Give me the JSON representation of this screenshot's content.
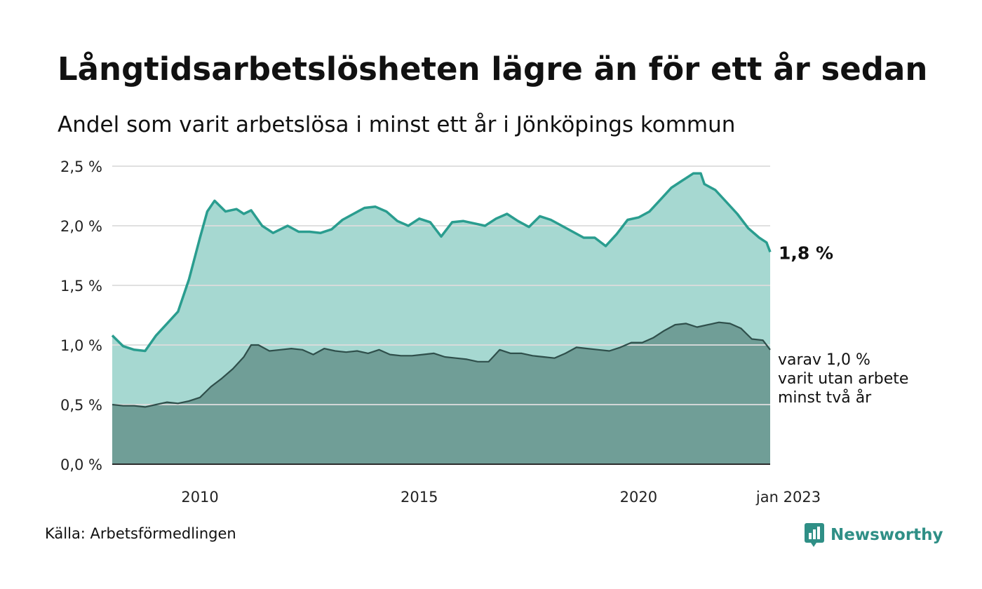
{
  "title": "Långtidsarbetslösheten lägre än för ett år sedan",
  "subtitle": "Andel som varit arbetslösa i minst ett år i Jönköpings kommun",
  "source": "Källa: Arbetsförmedlingen",
  "brand": "Newsworthy",
  "colors": {
    "total_line": "#2a9d8f",
    "total_fill": "#a6d8d1",
    "long_line": "#2f4f4b",
    "long_fill": "#709e97",
    "grid": "#dddddd"
  },
  "chart_data": {
    "type": "area",
    "title": "Andel som varit arbetslösa i minst ett år i Jönköpings kommun",
    "xlabel": "",
    "ylabel": "",
    "x_start": "2008-01",
    "x_end": "2023-01",
    "xlim": [
      "2008-01",
      "2023-01"
    ],
    "ylim": [
      0,
      2.5
    ],
    "yticks": [
      {
        "value": 0,
        "label": "0,0 %"
      },
      {
        "value": 0.5,
        "label": "0,5 %"
      },
      {
        "value": 1.0,
        "label": "1,0 %"
      },
      {
        "value": 1.5,
        "label": "1,5 %"
      },
      {
        "value": 2.0,
        "label": "2,0 %"
      },
      {
        "value": 2.5,
        "label": "2,5 %"
      }
    ],
    "xticks": [
      {
        "date": "2010-01",
        "label": "2010"
      },
      {
        "date": "2015-01",
        "label": "2015"
      },
      {
        "date": "2020-01",
        "label": "2020"
      },
      {
        "date": "2023-01",
        "label": "jan 2023"
      }
    ],
    "grid": true,
    "series": [
      {
        "key": "total",
        "end_label": "1,8 %",
        "points": [
          [
            "2008-01",
            1.08
          ],
          [
            "2008-04",
            0.99
          ],
          [
            "2008-07",
            0.96
          ],
          [
            "2008-10",
            0.95
          ],
          [
            "2009-01",
            1.08
          ],
          [
            "2009-04",
            1.18
          ],
          [
            "2009-07",
            1.28
          ],
          [
            "2009-10",
            1.55
          ],
          [
            "2010-01",
            1.9
          ],
          [
            "2010-03",
            2.12
          ],
          [
            "2010-05",
            2.21
          ],
          [
            "2010-08",
            2.12
          ],
          [
            "2010-11",
            2.14
          ],
          [
            "2011-01",
            2.1
          ],
          [
            "2011-03",
            2.13
          ],
          [
            "2011-06",
            2.0
          ],
          [
            "2011-09",
            1.94
          ],
          [
            "2012-01",
            2.0
          ],
          [
            "2012-04",
            1.95
          ],
          [
            "2012-07",
            1.95
          ],
          [
            "2012-10",
            1.94
          ],
          [
            "2013-01",
            1.97
          ],
          [
            "2013-04",
            2.05
          ],
          [
            "2013-07",
            2.1
          ],
          [
            "2013-10",
            2.15
          ],
          [
            "2014-01",
            2.16
          ],
          [
            "2014-04",
            2.12
          ],
          [
            "2014-07",
            2.04
          ],
          [
            "2014-10",
            2.0
          ],
          [
            "2015-01",
            2.06
          ],
          [
            "2015-04",
            2.03
          ],
          [
            "2015-07",
            1.91
          ],
          [
            "2015-10",
            2.03
          ],
          [
            "2016-01",
            2.04
          ],
          [
            "2016-04",
            2.02
          ],
          [
            "2016-07",
            2.0
          ],
          [
            "2016-10",
            2.06
          ],
          [
            "2017-01",
            2.1
          ],
          [
            "2017-04",
            2.04
          ],
          [
            "2017-07",
            1.99
          ],
          [
            "2017-10",
            2.08
          ],
          [
            "2018-01",
            2.05
          ],
          [
            "2018-04",
            2.0
          ],
          [
            "2018-07",
            1.95
          ],
          [
            "2018-10",
            1.9
          ],
          [
            "2019-01",
            1.9
          ],
          [
            "2019-04",
            1.83
          ],
          [
            "2019-07",
            1.93
          ],
          [
            "2019-10",
            2.05
          ],
          [
            "2020-01",
            2.07
          ],
          [
            "2020-04",
            2.12
          ],
          [
            "2020-07",
            2.22
          ],
          [
            "2020-10",
            2.32
          ],
          [
            "2021-01",
            2.38
          ],
          [
            "2021-04",
            2.44
          ],
          [
            "2021-06",
            2.44
          ],
          [
            "2021-07",
            2.35
          ],
          [
            "2021-10",
            2.3
          ],
          [
            "2022-01",
            2.2
          ],
          [
            "2022-04",
            2.1
          ],
          [
            "2022-07",
            1.98
          ],
          [
            "2022-10",
            1.9
          ],
          [
            "2022-12",
            1.86
          ],
          [
            "2023-01",
            1.78
          ]
        ]
      },
      {
        "key": "long",
        "end_label": [
          "varav 1,0 %",
          "varit utan arbete",
          "minst två år"
        ],
        "points": [
          [
            "2008-01",
            0.5
          ],
          [
            "2008-04",
            0.49
          ],
          [
            "2008-07",
            0.49
          ],
          [
            "2008-10",
            0.48
          ],
          [
            "2009-01",
            0.5
          ],
          [
            "2009-04",
            0.52
          ],
          [
            "2009-07",
            0.51
          ],
          [
            "2009-10",
            0.53
          ],
          [
            "2010-01",
            0.56
          ],
          [
            "2010-04",
            0.65
          ],
          [
            "2010-07",
            0.72
          ],
          [
            "2010-10",
            0.8
          ],
          [
            "2011-01",
            0.9
          ],
          [
            "2011-03",
            1.0
          ],
          [
            "2011-05",
            1.0
          ],
          [
            "2011-08",
            0.95
          ],
          [
            "2011-11",
            0.96
          ],
          [
            "2012-02",
            0.97
          ],
          [
            "2012-05",
            0.96
          ],
          [
            "2012-08",
            0.92
          ],
          [
            "2012-11",
            0.97
          ],
          [
            "2013-02",
            0.95
          ],
          [
            "2013-05",
            0.94
          ],
          [
            "2013-08",
            0.95
          ],
          [
            "2013-11",
            0.93
          ],
          [
            "2014-02",
            0.96
          ],
          [
            "2014-05",
            0.92
          ],
          [
            "2014-08",
            0.91
          ],
          [
            "2014-11",
            0.91
          ],
          [
            "2015-02",
            0.92
          ],
          [
            "2015-05",
            0.93
          ],
          [
            "2015-08",
            0.9
          ],
          [
            "2015-11",
            0.89
          ],
          [
            "2016-02",
            0.88
          ],
          [
            "2016-05",
            0.86
          ],
          [
            "2016-08",
            0.86
          ],
          [
            "2016-11",
            0.96
          ],
          [
            "2017-02",
            0.93
          ],
          [
            "2017-05",
            0.93
          ],
          [
            "2017-08",
            0.91
          ],
          [
            "2017-11",
            0.9
          ],
          [
            "2018-02",
            0.89
          ],
          [
            "2018-05",
            0.93
          ],
          [
            "2018-08",
            0.98
          ],
          [
            "2018-11",
            0.97
          ],
          [
            "2019-02",
            0.96
          ],
          [
            "2019-05",
            0.95
          ],
          [
            "2019-08",
            0.98
          ],
          [
            "2019-11",
            1.02
          ],
          [
            "2020-02",
            1.02
          ],
          [
            "2020-05",
            1.06
          ],
          [
            "2020-08",
            1.12
          ],
          [
            "2020-11",
            1.17
          ],
          [
            "2021-02",
            1.18
          ],
          [
            "2021-05",
            1.15
          ],
          [
            "2021-08",
            1.17
          ],
          [
            "2021-11",
            1.19
          ],
          [
            "2022-02",
            1.18
          ],
          [
            "2022-05",
            1.14
          ],
          [
            "2022-08",
            1.05
          ],
          [
            "2022-11",
            1.04
          ],
          [
            "2023-01",
            0.96
          ]
        ]
      }
    ]
  }
}
